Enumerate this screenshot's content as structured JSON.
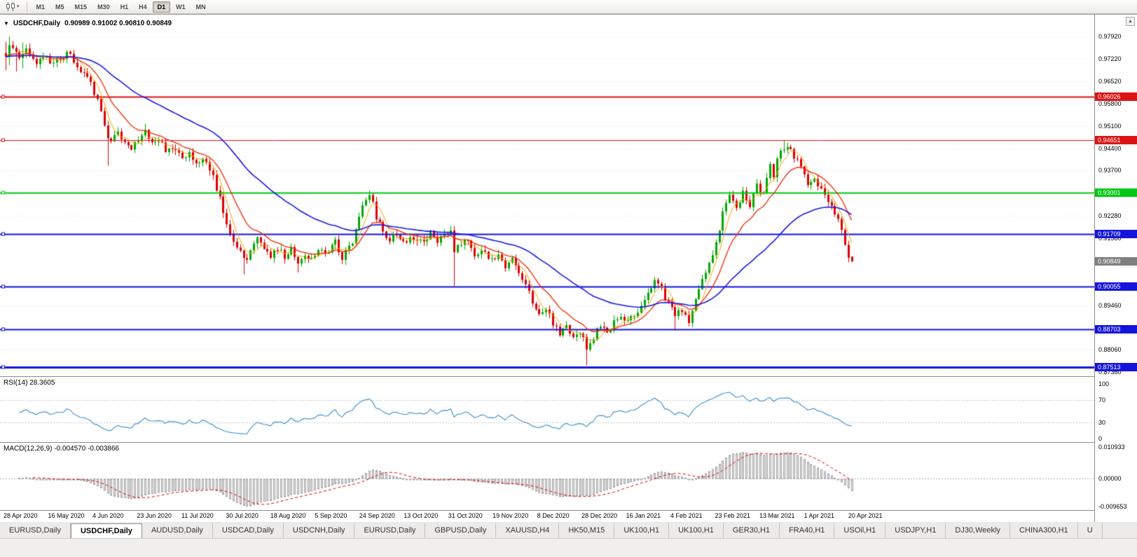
{
  "toolbar": {
    "chart_icon": "candlestick-chart",
    "dropdown_icon": "▾",
    "timeframes": [
      {
        "label": "M1",
        "active": false
      },
      {
        "label": "M5",
        "active": false
      },
      {
        "label": "M15",
        "active": false
      },
      {
        "label": "M30",
        "active": false
      },
      {
        "label": "H1",
        "active": false
      },
      {
        "label": "H4",
        "active": false
      },
      {
        "label": "D1",
        "active": true
      },
      {
        "label": "W1",
        "active": false
      },
      {
        "label": "MN",
        "active": false
      }
    ]
  },
  "chart_header": {
    "dropdown_icon": "▼",
    "title": "USDCHF,Daily",
    "ohlc": "0.90989 0.91002 0.90810 0.90849",
    "scroll_button_icon": "▲"
  },
  "chart_data": {
    "type": "candlestick",
    "symbol": "USDCHF",
    "period": "Daily",
    "candle_up_color": "#00A800",
    "candle_down_color": "#DE0000",
    "n_candles": 250,
    "price_axis": {
      "top_price": 0.98165,
      "bottom_price": 0.87247,
      "ticks": [
        "0.97920",
        "0.97220",
        "0.96520",
        "0.95800",
        "0.95100",
        "0.94400",
        "0.93700",
        "0.92280",
        "0.91580",
        "0.89460",
        "0.88060",
        "0.87360"
      ]
    },
    "hlines": [
      {
        "price": 0.96026,
        "label": "0.96026",
        "color": "#DC1414",
        "width": 2
      },
      {
        "price": 0.94651,
        "label": "0.94651",
        "color": "#DC1414",
        "width": 1
      },
      {
        "price": 0.93001,
        "label": "0.93001",
        "color": "#00C814",
        "width": 2
      },
      {
        "price": 0.91709,
        "label": "0.91709",
        "color": "#1414DC",
        "width": 2
      },
      {
        "price": 0.90055,
        "label": "0.90055",
        "color": "#1414DC",
        "width": 2
      },
      {
        "price": 0.88703,
        "label": "0.88703",
        "color": "#1414DC",
        "width": 2
      },
      {
        "price": 0.87513,
        "label": "0.87513",
        "color": "#1414DC",
        "width": 3
      }
    ],
    "current_price": {
      "value": 0.90849,
      "label": "0.90849",
      "tag_color": "#7F7F7F"
    },
    "last_candle": {
      "open": 0.90989,
      "high": 0.91002,
      "low": 0.9081,
      "close": 0.90849
    },
    "close_anchors": [
      [
        0,
        0.9728
      ],
      [
        1,
        0.9755
      ],
      [
        2,
        0.9762
      ],
      [
        3,
        0.9738
      ],
      [
        4,
        0.9712
      ],
      [
        6,
        0.9745
      ],
      [
        8,
        0.9722
      ],
      [
        9,
        0.97
      ],
      [
        11,
        0.9722
      ],
      [
        13,
        0.9712
      ],
      [
        15,
        0.9728
      ],
      [
        17,
        0.9715
      ],
      [
        18,
        0.9738
      ],
      [
        20,
        0.9715
      ],
      [
        22,
        0.9688
      ],
      [
        23,
        0.9672
      ],
      [
        25,
        0.9645
      ],
      [
        26,
        0.962
      ],
      [
        27,
        0.9588
      ],
      [
        28,
        0.955
      ],
      [
        29,
        0.9505
      ],
      [
        30,
        0.946
      ],
      [
        31,
        0.9455
      ],
      [
        32,
        0.9472
      ],
      [
        33,
        0.9488
      ],
      [
        34,
        0.9475
      ],
      [
        35,
        0.9462
      ],
      [
        36,
        0.9448
      ],
      [
        37,
        0.944
      ],
      [
        38,
        0.9455
      ],
      [
        39,
        0.9472
      ],
      [
        40,
        0.9488
      ],
      [
        41,
        0.9502
      ],
      [
        42,
        0.9478
      ],
      [
        43,
        0.9448
      ],
      [
        45,
        0.9465
      ],
      [
        47,
        0.9432
      ],
      [
        49,
        0.9445
      ],
      [
        51,
        0.942
      ],
      [
        52,
        0.9412
      ],
      [
        54,
        0.9425
      ],
      [
        56,
        0.9398
      ],
      [
        58,
        0.9412
      ],
      [
        59,
        0.9392
      ],
      [
        60,
        0.9372
      ],
      [
        61,
        0.9345
      ],
      [
        62,
        0.9312
      ],
      [
        63,
        0.9278
      ],
      [
        64,
        0.9245
      ],
      [
        65,
        0.921
      ],
      [
        66,
        0.9182
      ],
      [
        67,
        0.9158
      ],
      [
        68,
        0.9135
      ],
      [
        69,
        0.9108
      ],
      [
        70,
        0.9085
      ],
      [
        71,
        0.9095
      ],
      [
        72,
        0.9112
      ],
      [
        73,
        0.9135
      ],
      [
        74,
        0.9158
      ],
      [
        75,
        0.9145
      ],
      [
        76,
        0.9132
      ],
      [
        77,
        0.9112
      ],
      [
        78,
        0.9092
      ],
      [
        79,
        0.911
      ],
      [
        80,
        0.9128
      ],
      [
        81,
        0.9112
      ],
      [
        82,
        0.9098
      ],
      [
        83,
        0.9115
      ],
      [
        84,
        0.9132
      ],
      [
        85,
        0.9105
      ],
      [
        86,
        0.9082
      ],
      [
        87,
        0.9098
      ],
      [
        88,
        0.9112
      ],
      [
        89,
        0.9102
      ],
      [
        91,
        0.9092
      ],
      [
        92,
        0.9112
      ],
      [
        93,
        0.9132
      ],
      [
        94,
        0.912
      ],
      [
        95,
        0.9108
      ],
      [
        96,
        0.9125
      ],
      [
        97,
        0.9142
      ],
      [
        98,
        0.9118
      ],
      [
        99,
        0.9092
      ],
      [
        100,
        0.9108
      ],
      [
        101,
        0.9125
      ],
      [
        102,
        0.9152
      ],
      [
        103,
        0.9185
      ],
      [
        104,
        0.9225
      ],
      [
        105,
        0.9258
      ],
      [
        106,
        0.928
      ],
      [
        107,
        0.9292
      ],
      [
        108,
        0.9262
      ],
      [
        109,
        0.9225
      ],
      [
        110,
        0.92
      ],
      [
        111,
        0.9182
      ],
      [
        112,
        0.9168
      ],
      [
        113,
        0.9158
      ],
      [
        114,
        0.917
      ],
      [
        115,
        0.9178
      ],
      [
        116,
        0.9162
      ],
      [
        117,
        0.9148
      ],
      [
        118,
        0.9155
      ],
      [
        119,
        0.9162
      ],
      [
        120,
        0.915
      ],
      [
        121,
        0.9138
      ],
      [
        122,
        0.9148
      ],
      [
        123,
        0.9158
      ],
      [
        124,
        0.9165
      ],
      [
        125,
        0.9172
      ],
      [
        126,
        0.916
      ],
      [
        127,
        0.9148
      ],
      [
        128,
        0.9155
      ],
      [
        129,
        0.9162
      ],
      [
        130,
        0.9175
      ],
      [
        131,
        0.9185
      ],
      [
        132,
        0.912
      ],
      [
        133,
        0.9135
      ],
      [
        134,
        0.9148
      ],
      [
        135,
        0.9158
      ],
      [
        136,
        0.914
      ],
      [
        137,
        0.9122
      ],
      [
        138,
        0.911
      ],
      [
        139,
        0.9098
      ],
      [
        140,
        0.9108
      ],
      [
        141,
        0.9118
      ],
      [
        142,
        0.9102
      ],
      [
        143,
        0.9088
      ],
      [
        144,
        0.9098
      ],
      [
        145,
        0.9108
      ],
      [
        146,
        0.909
      ],
      [
        147,
        0.9072
      ],
      [
        148,
        0.908
      ],
      [
        149,
        0.9088
      ],
      [
        150,
        0.9068
      ],
      [
        151,
        0.9048
      ],
      [
        152,
        0.903
      ],
      [
        153,
        0.9012
      ],
      [
        154,
        0.8985
      ],
      [
        155,
        0.8958
      ],
      [
        156,
        0.8932
      ],
      [
        157,
        0.8908
      ],
      [
        158,
        0.8918
      ],
      [
        159,
        0.8928
      ],
      [
        160,
        0.891
      ],
      [
        161,
        0.8892
      ],
      [
        162,
        0.8875
      ],
      [
        163,
        0.8858
      ],
      [
        164,
        0.8868
      ],
      [
        165,
        0.8878
      ],
      [
        166,
        0.886
      ],
      [
        167,
        0.8842
      ],
      [
        168,
        0.885
      ],
      [
        169,
        0.8858
      ],
      [
        170,
        0.8835
      ],
      [
        171,
        0.8812
      ],
      [
        172,
        0.883
      ],
      [
        173,
        0.8848
      ],
      [
        174,
        0.8865
      ],
      [
        175,
        0.8882
      ],
      [
        176,
        0.887
      ],
      [
        177,
        0.8858
      ],
      [
        178,
        0.8872
      ],
      [
        179,
        0.8888
      ],
      [
        180,
        0.89
      ],
      [
        181,
        0.8912
      ],
      [
        182,
        0.8902
      ],
      [
        183,
        0.8892
      ],
      [
        184,
        0.8905
      ],
      [
        185,
        0.8918
      ],
      [
        186,
        0.8932
      ],
      [
        187,
        0.8948
      ],
      [
        188,
        0.8962
      ],
      [
        189,
        0.8978
      ],
      [
        190,
        0.9005
      ],
      [
        191,
        0.9032
      ],
      [
        192,
        0.9012
      ],
      [
        193,
        0.8992
      ],
      [
        194,
        0.8972
      ],
      [
        195,
        0.8952
      ],
      [
        196,
        0.8932
      ],
      [
        197,
        0.8912
      ],
      [
        198,
        0.8922
      ],
      [
        199,
        0.8932
      ],
      [
        200,
        0.8918
      ],
      [
        201,
        0.8902
      ],
      [
        202,
        0.8925
      ],
      [
        203,
        0.8965
      ],
      [
        204,
        0.9
      ],
      [
        205,
        0.9035
      ],
      [
        206,
        0.906
      ],
      [
        207,
        0.9085
      ],
      [
        208,
        0.9112
      ],
      [
        209,
        0.9142
      ],
      [
        210,
        0.919
      ],
      [
        211,
        0.9235
      ],
      [
        212,
        0.9262
      ],
      [
        213,
        0.929
      ],
      [
        214,
        0.9268
      ],
      [
        215,
        0.9248
      ],
      [
        216,
        0.9272
      ],
      [
        217,
        0.93
      ],
      [
        218,
        0.9282
      ],
      [
        219,
        0.9265
      ],
      [
        220,
        0.9298
      ],
      [
        221,
        0.9322
      ],
      [
        222,
        0.93
      ],
      [
        223,
        0.9292
      ],
      [
        224,
        0.934
      ],
      [
        225,
        0.9382
      ],
      [
        226,
        0.936
      ],
      [
        227,
        0.9408
      ],
      [
        228,
        0.943
      ],
      [
        229,
        0.9445
      ],
      [
        230,
        0.9452
      ],
      [
        231,
        0.943
      ],
      [
        233,
        0.9398
      ],
      [
        235,
        0.935
      ],
      [
        236,
        0.932
      ],
      [
        238,
        0.9345
      ],
      [
        240,
        0.9312
      ],
      [
        242,
        0.9278
      ],
      [
        244,
        0.9235
      ],
      [
        246,
        0.918
      ],
      [
        247,
        0.9148
      ],
      [
        248,
        0.9099
      ],
      [
        249,
        0.90849
      ]
    ],
    "wick_overrides": {
      "0": {
        "high": 0.9775,
        "low": 0.9685
      },
      "1": {
        "high": 0.9792,
        "low": 0.9702
      },
      "3": {
        "low": 0.9682
      },
      "5": {
        "high": 0.9772,
        "low": 0.9692
      },
      "30": {
        "low": 0.9385
      },
      "41": {
        "high": 0.9517
      },
      "70": {
        "low": 0.9043
      },
      "86": {
        "low": 0.9049
      },
      "107": {
        "high": 0.9307
      },
      "132": {
        "low": 0.9006
      },
      "171": {
        "low": 0.8757
      },
      "197": {
        "low": 0.8866
      },
      "229": {
        "high": 0.9467
      },
      "230": {
        "high": 0.9459
      }
    },
    "moving_averages": [
      {
        "type": "sma",
        "period": 5,
        "color": "#F7A600",
        "width": 1
      },
      {
        "type": "ema",
        "period": 13,
        "color": "#F02800",
        "width": 1.3
      },
      {
        "type": "ema",
        "period": 45,
        "color": "#1A1AE6",
        "width": 1.6
      }
    ],
    "x_axis": {
      "labels": [
        "28 Apr 2020",
        "16 May 2020",
        "4 Jun 2020",
        "23 Jun 2020",
        "11 Jul 2020",
        "30 Jul 2020",
        "18 Aug 2020",
        "5 Sep 2020",
        "24 Sep 2020",
        "13 Oct 2020",
        "31 Oct 2020",
        "19 Nov 2020",
        "8 Dec 2020",
        "28 Dec 2020",
        "16 Jan 2021",
        "4 Feb 2021",
        "23 Feb 2021",
        "13 Mar 2021",
        "1 Apr 2021",
        "20 Apr 2021"
      ]
    },
    "rsi_panel": {
      "label": "RSI(14) 28.3605",
      "period": 14,
      "current": 28.3605,
      "line_color": "#4A96D2",
      "levels": [
        "100",
        "70",
        "30",
        "0"
      ],
      "dotted_levels": [
        70,
        30
      ]
    },
    "macd_panel": {
      "label": "MACD(12,26,9) -0.004570 -0.003866",
      "fast": 12,
      "slow": 26,
      "signal": 9,
      "current_main": -0.00457,
      "current_signal": -0.003866,
      "hist_fill": "#E8E8E8",
      "hist_stroke": "#A4A4A4",
      "signal_color": "#DE0000",
      "axis_labels": [
        "0.010933",
        "0.00000",
        "-0.009653"
      ],
      "axis_values": [
        0.010933,
        0,
        -0.009653
      ]
    }
  },
  "tabs": {
    "items": [
      {
        "label": "EURUSD,Daily",
        "active": false
      },
      {
        "label": "USDCHF,Daily",
        "active": true
      },
      {
        "label": "AUDUSD,Daily",
        "active": false
      },
      {
        "label": "USDCAD,Daily",
        "active": false
      },
      {
        "label": "USDCNH,Daily",
        "active": false
      },
      {
        "label": "EURUSD,Daily",
        "active": false
      },
      {
        "label": "GBPUSD,Daily",
        "active": false
      },
      {
        "label": "XAUUSD,H4",
        "active": false
      },
      {
        "label": "HK50,M15",
        "active": false
      },
      {
        "label": "UK100,H1",
        "active": false
      },
      {
        "label": "UK100,H1",
        "active": false
      },
      {
        "label": "GER30,H1",
        "active": false
      },
      {
        "label": "FRA40,H1",
        "active": false
      },
      {
        "label": "USOil,H1",
        "active": false
      },
      {
        "label": "USDJPY,H1",
        "active": false
      },
      {
        "label": "DJ30,Weekly",
        "active": false
      },
      {
        "label": "CHINA300,H1",
        "active": false
      },
      {
        "label": "U",
        "active": false
      }
    ]
  }
}
